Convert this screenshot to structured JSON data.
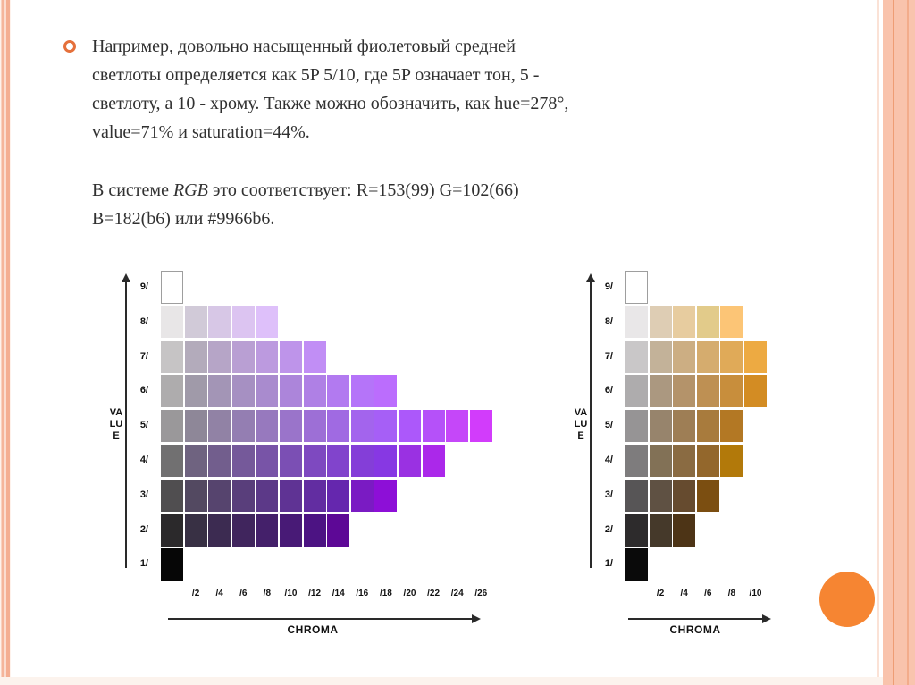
{
  "slide": {
    "bullet_color": "#e5703b",
    "paragraph1": {
      "lines": [
        "Например, довольно насыщенный фиолетовый средней",
        "светлоты определяется как 5P 5/10, где 5P означает тон, 5 -",
        "светлоту, а 10 - хрому. Также можно обозначить, как hue=278°,",
        "value=71% и saturation=44%."
      ]
    },
    "paragraph2": {
      "line1_prefix": "В системе ",
      "line1_italic": "RGB",
      "line1_suffix": " это соответствует: R=153(99) G=102(66)",
      "line2": "B=182(b6) или #9966b6."
    }
  },
  "decor": {
    "circle_color": "#f68532",
    "stripe_salmon": "#f5b59b",
    "right_band_peach": "#f9c3ac",
    "right_band_line": "#ee9d75",
    "bottom_strip": "#fcf3ed"
  },
  "chart_data": [
    {
      "type": "heatmap",
      "xlabel": "CHROMA",
      "ylabel": "VALUE",
      "value_labels": [
        "9/",
        "8/",
        "7/",
        "6/",
        "5/",
        "4/",
        "3/",
        "2/",
        "1/"
      ],
      "chroma_labels": [
        "/2",
        "/4",
        "/6",
        "/8",
        "/10",
        "/12",
        "/14",
        "/16",
        "/18",
        "/20",
        "/22",
        "/24",
        "/26"
      ],
      "rows": [
        {
          "label": "9/",
          "cells": [
            "#ffffff"
          ]
        },
        {
          "label": "8/",
          "cells": [
            "#e8e6e7",
            "#d1cad8",
            "#d7c7e6",
            "#dcc4f1",
            "#dec0fa"
          ]
        },
        {
          "label": "7/",
          "cells": [
            "#c6c4c5",
            "#b3abbb",
            "#b6a5c7",
            "#b99fd3",
            "#bc9adf",
            "#be94ea",
            "#c18ef5"
          ]
        },
        {
          "label": "6/",
          "cells": [
            "#aeacad",
            "#a09aa9",
            "#a395b6",
            "#a690c2",
            "#a98bce",
            "#ac85da",
            "#af80e5",
            "#b27af0",
            "#b574f9",
            "#bb6dfd"
          ]
        },
        {
          "label": "5/",
          "cells": [
            "#9a989a",
            "#8e8798",
            "#9182a5",
            "#947eb2",
            "#9779be",
            "#9a74ca",
            "#9d6fd6",
            "#a06ae2",
            "#a364ed",
            "#a65ff6",
            "#ac58fa",
            "#b551f9",
            "#c547f9",
            "#d23cfb"
          ]
        },
        {
          "label": "4/",
          "cells": [
            "#717071",
            "#6f6380",
            "#725e8d",
            "#75599a",
            "#7854a7",
            "#7b4fb4",
            "#7e49c0",
            "#8144cc",
            "#843ed8",
            "#8738e3",
            "#9a31e2",
            "#ab28ea"
          ]
        },
        {
          "label": "3/",
          "cells": [
            "#504e50",
            "#534961",
            "#56446e",
            "#593e7b",
            "#5c3988",
            "#5f3394",
            "#622da1",
            "#6527ae",
            "#7a1bc3",
            "#8d0fd7"
          ]
        },
        {
          "label": "2/",
          "cells": [
            "#2b292b",
            "#383044",
            "#3c2b51",
            "#40255d",
            "#44206a",
            "#481a76",
            "#4c1383",
            "#5d0896"
          ]
        },
        {
          "label": "1/",
          "cells": [
            "#060606"
          ]
        }
      ]
    },
    {
      "type": "heatmap",
      "xlabel": "CHROMA",
      "ylabel": "VALUE",
      "value_labels": [
        "9/",
        "8/",
        "7/",
        "6/",
        "5/",
        "4/",
        "3/",
        "2/",
        "1/"
      ],
      "chroma_labels": [
        "/2",
        "/4",
        "/6",
        "/8",
        "/10"
      ],
      "rows": [
        {
          "label": "9/",
          "cells": [
            "#ffffff"
          ]
        },
        {
          "label": "8/",
          "cells": [
            "#e9e7e8",
            "#decdb4",
            "#e7cc9f",
            "#e2cb8a",
            "#fcc576"
          ]
        },
        {
          "label": "7/",
          "cells": [
            "#c9c7c8",
            "#c3b299",
            "#ccae83",
            "#d5ac6e",
            "#e0aa58",
            "#edaa42"
          ]
        },
        {
          "label": "6/",
          "cells": [
            "#aeacad",
            "#ab9880",
            "#b4936a",
            "#be9053",
            "#c88e3c",
            "#d38c23"
          ]
        },
        {
          "label": "5/",
          "cells": [
            "#969495",
            "#97846c",
            "#9e7e55",
            "#a87b3d",
            "#b37824"
          ]
        },
        {
          "label": "4/",
          "cells": [
            "#7e7c7d",
            "#827156",
            "#8a6b42",
            "#93672c",
            "#b2790a"
          ]
        },
        {
          "label": "3/",
          "cells": [
            "#575556",
            "#5f5143",
            "#664b2f",
            "#7b4e11"
          ]
        },
        {
          "label": "2/",
          "cells": [
            "#2d2b2c",
            "#45392a",
            "#4d3416"
          ]
        },
        {
          "label": "1/",
          "cells": [
            "#0a0a0a"
          ]
        }
      ]
    }
  ]
}
